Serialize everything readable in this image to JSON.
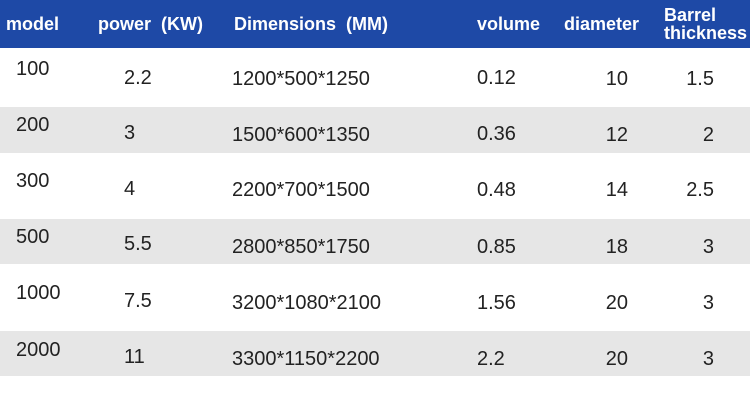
{
  "headers": {
    "model": "model",
    "power": "power  (KW)",
    "dimensions": "Dimensions  (MM)",
    "volume": "volume",
    "diameter": "diameter",
    "barrel_thickness": "Barrel\nthickness"
  },
  "rows": [
    {
      "model": "100",
      "power": "2.2",
      "dimensions": "1200*500*1250",
      "volume": "0.12",
      "diameter": "10",
      "barrel": "1.5"
    },
    {
      "model": "200",
      "power": "3",
      "dimensions": "1500*600*1350",
      "volume": "0.36",
      "diameter": "12",
      "barrel": "2"
    },
    {
      "model": "300",
      "power": "4",
      "dimensions": "2200*700*1500",
      "volume": "0.48",
      "diameter": "14",
      "barrel": "2.5"
    },
    {
      "model": "500",
      "power": "5.5",
      "dimensions": "2800*850*1750",
      "volume": "0.85",
      "diameter": "18",
      "barrel": "3"
    },
    {
      "model": "1000",
      "power": "7.5",
      "dimensions": "3200*1080*2100",
      "volume": "1.56",
      "diameter": "20",
      "barrel": "3"
    },
    {
      "model": "2000",
      "power": "11",
      "dimensions": "3300*1150*2200",
      "volume": "2.2",
      "diameter": "20",
      "barrel": "3"
    }
  ]
}
